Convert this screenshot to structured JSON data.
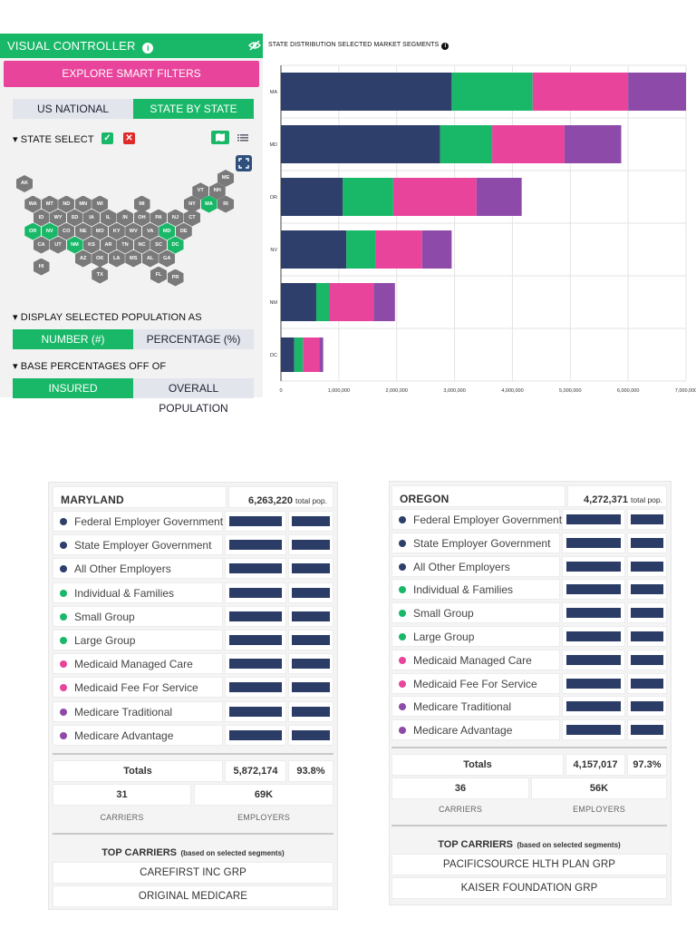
{
  "controller": {
    "title": "VISUAL CONTROLLER",
    "info_icon": "info-icon",
    "smart_filters_label": "EXPLORE SMART FILTERS",
    "tabs": [
      {
        "label": "US NATIONAL",
        "active": false
      },
      {
        "label": "STATE BY STATE",
        "active": true
      }
    ],
    "state_select_label": "STATE SELECT",
    "display_as_label": "DISPLAY SELECTED POPULATION AS",
    "display_options": [
      {
        "label": "NUMBER (#)",
        "active": true
      },
      {
        "label": "PERCENTAGE (%)",
        "active": false
      }
    ],
    "base_label": "BASE PERCENTAGES OFF OF",
    "base_options": [
      {
        "label": "INSURED POPULATION",
        "active": true
      },
      {
        "label": "OVERALL POPULATION",
        "active": false
      }
    ],
    "accent": "#19b868",
    "pink": "#e8449c"
  },
  "map": {
    "states": [
      {
        "abbr": "AK",
        "col": 0,
        "row": 0,
        "sel": false
      },
      {
        "abbr": "ME",
        "col": 12,
        "row": -0.4,
        "sel": false
      },
      {
        "abbr": "VT",
        "col": 10.5,
        "row": 0.55,
        "sel": false
      },
      {
        "abbr": "NH",
        "col": 11.5,
        "row": 0.55,
        "sel": false
      },
      {
        "abbr": "WA",
        "col": 0.5,
        "row": 1.5,
        "sel": false
      },
      {
        "abbr": "MT",
        "col": 1.5,
        "row": 1.5,
        "sel": false
      },
      {
        "abbr": "ND",
        "col": 2.5,
        "row": 1.5,
        "sel": false
      },
      {
        "abbr": "MN",
        "col": 3.5,
        "row": 1.5,
        "sel": false
      },
      {
        "abbr": "WI",
        "col": 4.5,
        "row": 1.5,
        "sel": false
      },
      {
        "abbr": "MI",
        "col": 7,
        "row": 1.5,
        "sel": false
      },
      {
        "abbr": "NY",
        "col": 10,
        "row": 1.5,
        "sel": false
      },
      {
        "abbr": "MA",
        "col": 11,
        "row": 1.5,
        "sel": true
      },
      {
        "abbr": "RI",
        "col": 12,
        "row": 1.5,
        "sel": false
      },
      {
        "abbr": "ID",
        "col": 1,
        "row": 2.5,
        "sel": false
      },
      {
        "abbr": "WY",
        "col": 2,
        "row": 2.5,
        "sel": false
      },
      {
        "abbr": "SD",
        "col": 3,
        "row": 2.5,
        "sel": false
      },
      {
        "abbr": "IA",
        "col": 4,
        "row": 2.5,
        "sel": false
      },
      {
        "abbr": "IL",
        "col": 5,
        "row": 2.5,
        "sel": false
      },
      {
        "abbr": "IN",
        "col": 6,
        "row": 2.5,
        "sel": false
      },
      {
        "abbr": "OH",
        "col": 7,
        "row": 2.5,
        "sel": false
      },
      {
        "abbr": "PA",
        "col": 8,
        "row": 2.5,
        "sel": false
      },
      {
        "abbr": "NJ",
        "col": 9,
        "row": 2.5,
        "sel": false
      },
      {
        "abbr": "CT",
        "col": 10,
        "row": 2.5,
        "sel": false
      },
      {
        "abbr": "OR",
        "col": 0.5,
        "row": 3.5,
        "sel": true
      },
      {
        "abbr": "NV",
        "col": 1.5,
        "row": 3.5,
        "sel": true
      },
      {
        "abbr": "CO",
        "col": 2.5,
        "row": 3.5,
        "sel": false
      },
      {
        "abbr": "NE",
        "col": 3.5,
        "row": 3.5,
        "sel": false
      },
      {
        "abbr": "MO",
        "col": 4.5,
        "row": 3.5,
        "sel": false
      },
      {
        "abbr": "KY",
        "col": 5.5,
        "row": 3.5,
        "sel": false
      },
      {
        "abbr": "WV",
        "col": 6.5,
        "row": 3.5,
        "sel": false
      },
      {
        "abbr": "VA",
        "col": 7.5,
        "row": 3.5,
        "sel": false
      },
      {
        "abbr": "MD",
        "col": 8.5,
        "row": 3.5,
        "sel": true
      },
      {
        "abbr": "DE",
        "col": 9.5,
        "row": 3.5,
        "sel": false
      },
      {
        "abbr": "CA",
        "col": 1,
        "row": 4.5,
        "sel": false
      },
      {
        "abbr": "UT",
        "col": 2,
        "row": 4.5,
        "sel": false
      },
      {
        "abbr": "NM",
        "col": 3,
        "row": 4.5,
        "sel": true
      },
      {
        "abbr": "KS",
        "col": 4,
        "row": 4.5,
        "sel": false
      },
      {
        "abbr": "AR",
        "col": 5,
        "row": 4.5,
        "sel": false
      },
      {
        "abbr": "TN",
        "col": 6,
        "row": 4.5,
        "sel": false
      },
      {
        "abbr": "NC",
        "col": 7,
        "row": 4.5,
        "sel": false
      },
      {
        "abbr": "SC",
        "col": 8,
        "row": 4.5,
        "sel": false
      },
      {
        "abbr": "DC",
        "col": 9,
        "row": 4.5,
        "sel": true
      },
      {
        "abbr": "HI",
        "col": 1,
        "row": 6.1,
        "sel": false
      },
      {
        "abbr": "AZ",
        "col": 3.5,
        "row": 5.5,
        "sel": false
      },
      {
        "abbr": "OK",
        "col": 4.5,
        "row": 5.5,
        "sel": false
      },
      {
        "abbr": "LA",
        "col": 5.5,
        "row": 5.5,
        "sel": false
      },
      {
        "abbr": "MS",
        "col": 6.5,
        "row": 5.5,
        "sel": false
      },
      {
        "abbr": "AL",
        "col": 7.5,
        "row": 5.5,
        "sel": false
      },
      {
        "abbr": "GA",
        "col": 8.5,
        "row": 5.5,
        "sel": false
      },
      {
        "abbr": "TX",
        "col": 4.5,
        "row": 6.7,
        "sel": false
      },
      {
        "abbr": "FL",
        "col": 8,
        "row": 6.7,
        "sel": false
      },
      {
        "abbr": "PR",
        "col": 9,
        "row": 6.9,
        "sel": false
      }
    ]
  },
  "chart_data": {
    "type": "bar",
    "orientation": "horizontal",
    "stacked": true,
    "title": "STATE DISTRIBUTION SELECTED MARKET SEGMENTS",
    "categories": [
      "MA",
      "MD",
      "OR",
      "NV",
      "NM",
      "DC"
    ],
    "series": [
      {
        "color": "#2f3f6b",
        "values": [
          2950000,
          2750000,
          1070000,
          1130000,
          610000,
          230000
        ]
      },
      {
        "color": "#19b868",
        "values": [
          1400000,
          900000,
          870000,
          500000,
          220000,
          150000
        ]
      },
      {
        "color": "#e8449c",
        "values": [
          1650000,
          1250000,
          1440000,
          810000,
          770000,
          280000
        ]
      },
      {
        "color": "#8e4aa8",
        "values": [
          1000000,
          980000,
          780000,
          510000,
          370000,
          70000
        ]
      }
    ],
    "xlim": [
      0,
      7000000
    ],
    "xticks": [
      "0",
      "1,000,000",
      "2,000,000",
      "3,000,000",
      "4,000,000",
      "5,000,000",
      "6,000,000",
      "7,000,000"
    ],
    "grid": true
  },
  "segments": [
    {
      "label": "Federal Employer Government",
      "color": "#2f3f6b"
    },
    {
      "label": "State Employer Government",
      "color": "#2f3f6b"
    },
    {
      "label": "All Other Employers",
      "color": "#2f3f6b"
    },
    {
      "label": "Individual & Families",
      "color": "#19b868"
    },
    {
      "label": "Small Group",
      "color": "#19b868"
    },
    {
      "label": "Large Group",
      "color": "#19b868"
    },
    {
      "label": "Medicaid Managed Care",
      "color": "#e8449c"
    },
    {
      "label": "Medicaid Fee For Service",
      "color": "#e8449c"
    },
    {
      "label": "Medicare Traditional",
      "color": "#8e4aa8"
    },
    {
      "label": "Medicare Advantage",
      "color": "#8e4aa8"
    }
  ],
  "cards": {
    "md": {
      "name": "MARYLAND",
      "pop": "6,263,220",
      "pop_suffix": "total pop.",
      "totals_label": "Totals",
      "totals_value": "5,872,174",
      "totals_pct": "93.8%",
      "carriers_count": "31",
      "employers_count": "69K",
      "carriers_label": "CARRIERS",
      "employers_label": "EMPLOYERS",
      "top_label": "TOP CARRIERS",
      "top_note": "(based on selected segments)",
      "top_carriers": [
        "CAREFIRST INC GRP",
        "ORIGINAL MEDICARE"
      ]
    },
    "or": {
      "name": "OREGON",
      "pop": "4,272,371",
      "pop_suffix": "total pop.",
      "totals_label": "Totals",
      "totals_value": "4,157,017",
      "totals_pct": "97.3%",
      "carriers_count": "36",
      "employers_count": "56K",
      "carriers_label": "CARRIERS",
      "employers_label": "EMPLOYERS",
      "top_label": "TOP CARRIERS",
      "top_note": "(based on selected segments)",
      "top_carriers": [
        "PACIFICSOURCE HLTH PLAN GRP",
        "KAISER FOUNDATION GRP"
      ]
    }
  }
}
